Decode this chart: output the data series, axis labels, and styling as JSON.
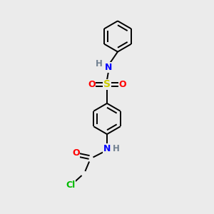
{
  "bg_color": "#ebebeb",
  "atom_colors": {
    "C": "#000000",
    "H": "#708090",
    "N": "#0000ff",
    "O": "#ff0000",
    "S": "#cccc00",
    "Cl": "#00bb00"
  },
  "bond_color": "#000000",
  "bond_lw": 1.4,
  "ring_r": 0.72,
  "inner_ratio": 0.73
}
